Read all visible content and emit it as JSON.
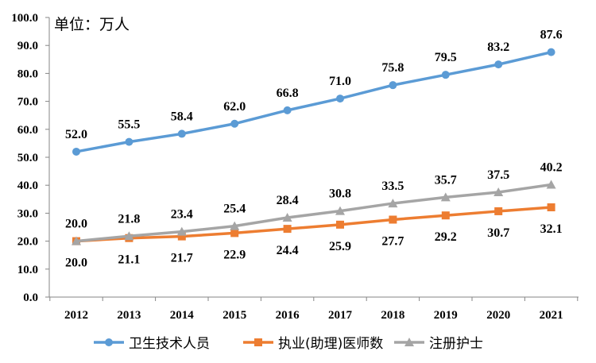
{
  "chart_data": {
    "type": "line",
    "unit_note": "单位：万人",
    "categories": [
      "2012",
      "2013",
      "2014",
      "2015",
      "2016",
      "2017",
      "2018",
      "2019",
      "2020",
      "2021"
    ],
    "ylim": [
      0,
      100
    ],
    "yticks": [
      "0.0",
      "10.0",
      "20.0",
      "30.0",
      "40.0",
      "50.0",
      "60.0",
      "70.0",
      "80.0",
      "90.0",
      "100.0"
    ],
    "grid": false,
    "legend_position": "bottom",
    "series": [
      {
        "name": "卫生技术人员",
        "color": "#5b9bd5",
        "marker": "circle",
        "label_pos": "above",
        "values": [
          52.0,
          55.5,
          58.4,
          62.0,
          66.8,
          71.0,
          75.8,
          79.5,
          83.2,
          87.6
        ]
      },
      {
        "name": "执业(助理)医师数",
        "color": "#ed7d31",
        "marker": "square",
        "label_pos": "below",
        "values": [
          20.0,
          21.1,
          21.7,
          22.9,
          24.4,
          25.9,
          27.7,
          29.2,
          30.7,
          32.1
        ]
      },
      {
        "name": "注册护士",
        "color": "#a5a5a5",
        "marker": "triangle",
        "label_pos": "above",
        "values": [
          20.0,
          21.8,
          23.4,
          25.4,
          28.4,
          30.8,
          33.5,
          35.7,
          37.5,
          40.2
        ]
      }
    ]
  }
}
